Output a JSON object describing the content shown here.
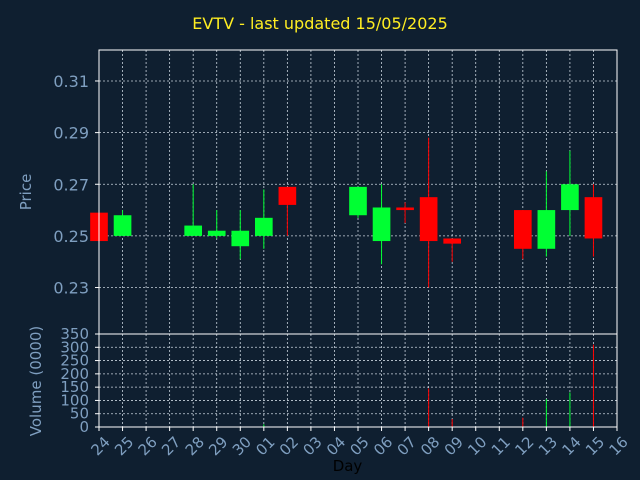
{
  "chart_data": {
    "type": "candlestick",
    "title": "EVTV - last updated 15/05/2025",
    "xlabel": "Day",
    "ylabel_price": "Price",
    "ylabel_volume": "Volume (0000)",
    "categories": [
      "24",
      "25",
      "26",
      "27",
      "28",
      "29",
      "30",
      "01",
      "02",
      "03",
      "04",
      "05",
      "06",
      "07",
      "08",
      "09",
      "10",
      "11",
      "12",
      "13",
      "14",
      "15",
      "16"
    ],
    "price_ylim": [
      0.212,
      0.322
    ],
    "price_ticks": [
      "0.23",
      "0.25",
      "0.27",
      "0.29",
      "0.31"
    ],
    "volume_ylim": [
      0,
      350
    ],
    "volume_ticks": [
      "0",
      "50",
      "100",
      "150",
      "200",
      "250",
      "300",
      "350"
    ],
    "grid": true,
    "colors": {
      "up": "#00ff33",
      "down": "#ff0000",
      "text": "#7f9fc0",
      "title": "#ffee22",
      "frame": "#ffffff",
      "background": "#0f1f30"
    },
    "candles": [
      {
        "day": "24",
        "open": 0.259,
        "high": 0.259,
        "low": 0.248,
        "close": 0.248,
        "volume": 0
      },
      {
        "day": "25",
        "open": 0.25,
        "high": 0.26,
        "low": 0.25,
        "close": 0.258,
        "volume": 0
      },
      {
        "day": "28",
        "open": 0.25,
        "high": 0.27,
        "low": 0.25,
        "close": 0.254,
        "volume": 0
      },
      {
        "day": "29",
        "open": 0.25,
        "high": 0.26,
        "low": 0.249,
        "close": 0.252,
        "volume": 0
      },
      {
        "day": "30",
        "open": 0.246,
        "high": 0.26,
        "low": 0.241,
        "close": 0.252,
        "volume": 0
      },
      {
        "day": "01",
        "open": 0.25,
        "high": 0.268,
        "low": 0.245,
        "close": 0.257,
        "volume": 10
      },
      {
        "day": "02",
        "open": 0.269,
        "high": 0.269,
        "low": 0.25,
        "close": 0.262,
        "volume": 0
      },
      {
        "day": "05",
        "open": 0.258,
        "high": 0.269,
        "low": 0.257,
        "close": 0.269,
        "volume": 0
      },
      {
        "day": "06",
        "open": 0.248,
        "high": 0.27,
        "low": 0.239,
        "close": 0.261,
        "volume": 0
      },
      {
        "day": "07",
        "open": 0.261,
        "high": 0.263,
        "low": 0.255,
        "close": 0.26,
        "volume": 0
      },
      {
        "day": "08",
        "open": 0.265,
        "high": 0.288,
        "low": 0.23,
        "close": 0.248,
        "volume": 145
      },
      {
        "day": "09",
        "open": 0.249,
        "high": 0.249,
        "low": 0.24,
        "close": 0.247,
        "volume": 30
      },
      {
        "day": "12",
        "open": 0.26,
        "high": 0.26,
        "low": 0.241,
        "close": 0.245,
        "volume": 35
      },
      {
        "day": "13",
        "open": 0.245,
        "high": 0.275,
        "low": 0.242,
        "close": 0.26,
        "volume": 105
      },
      {
        "day": "14",
        "open": 0.26,
        "high": 0.283,
        "low": 0.25,
        "close": 0.27,
        "volume": 130
      },
      {
        "day": "15",
        "open": 0.265,
        "high": 0.27,
        "low": 0.242,
        "close": 0.249,
        "volume": 310
      }
    ]
  }
}
